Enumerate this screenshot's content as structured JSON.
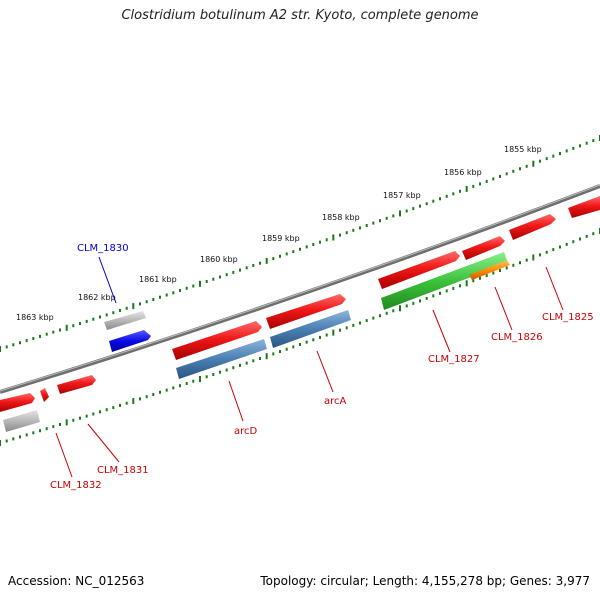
{
  "title": "Clostridium botulinum A2 str. Kyoto, complete genome",
  "footer": {
    "accession": "Accession: NC_012563",
    "topology": "Topology: circular; Length: 4,155,278 bp; Genes: 3,977"
  },
  "colors": {
    "backbone": "#7a7a7a",
    "tick": "#1a7a1a",
    "gene_red": "#e81010",
    "gene_gray": "#b4b4b4",
    "gene_blue": "#0a0ae6",
    "gene_steel": "#4a7fb3",
    "gene_green": "#3cc23c",
    "gene_orange": "#ff8c00",
    "label_red": "#cc0000",
    "label_blue": "#0000cc"
  },
  "kbp_labels": [
    "1855 kbp",
    "1856 kbp",
    "1857 kbp",
    "1858 kbp",
    "1859 kbp",
    "1860 kbp",
    "1861 kbp",
    "1862 kbp",
    "1863 kbp"
  ],
  "gene_labels": [
    {
      "text": "CLM_1830",
      "color": "blue"
    },
    {
      "text": "CLM_1825",
      "color": "red"
    },
    {
      "text": "CLM_1826",
      "color": "red"
    },
    {
      "text": "CLM_1827",
      "color": "red"
    },
    {
      "text": "arcA",
      "color": "red"
    },
    {
      "text": "arcD",
      "color": "red"
    },
    {
      "text": "CLM_1831",
      "color": "red"
    },
    {
      "text": "CLM_1832",
      "color": "red"
    }
  ]
}
